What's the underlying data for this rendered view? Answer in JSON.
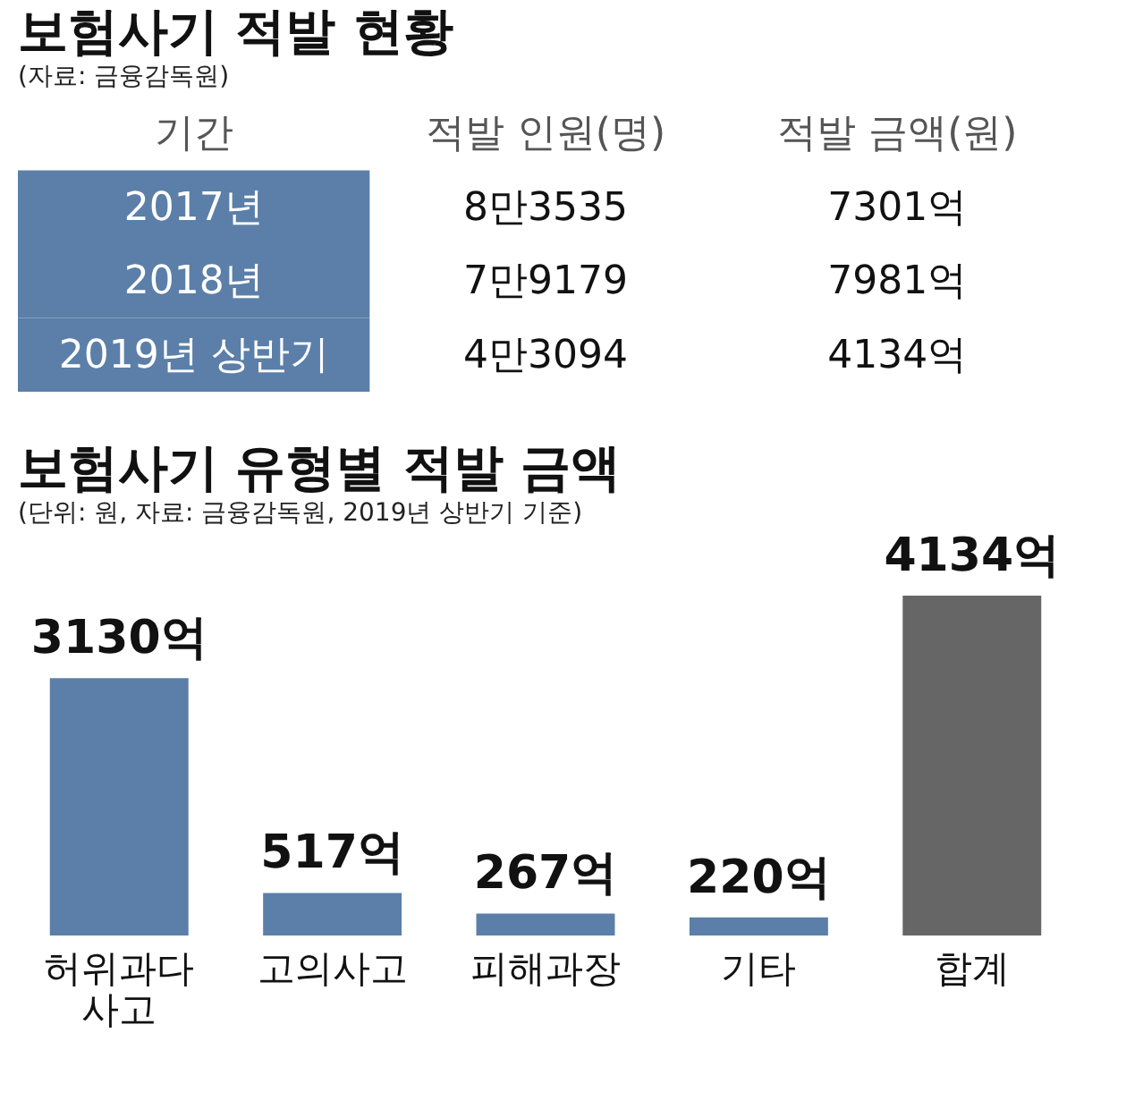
{
  "chart_data": [
    {
      "type": "other",
      "title": "보험사기 적발 현황",
      "subtitle": "(자료: 금융감독원)",
      "color": "#5b7fa8",
      "annotations": [
        "기간",
        "적발 인원(명)",
        "적발 금액(원)",
        "2017년",
        "8만3535",
        "7301억",
        "2018년",
        "7만9179",
        "7981억",
        "2019년 상반기",
        "4만3094",
        "4134억"
      ]
    },
    {
      "type": "bar",
      "title": "보험사기 유형별 적발 금액",
      "subtitle": "(단위: 원, 자료: 금융감독원, 2019년 상반기 기준)",
      "categories": [
        "허위과다 사고",
        "고의사고",
        "피해과장",
        "기타",
        "합계"
      ],
      "values": [
        3130,
        517,
        267,
        220,
        4134
      ],
      "colors": [
        "#5b7fa8",
        "#5b7fa8",
        "#5b7fa8",
        "#5b7fa8",
        "#666666"
      ],
      "value_labels": [
        "3130억",
        "517억",
        "267억",
        "220억",
        "4134억"
      ],
      "tick_labels": "x"
    }
  ]
}
